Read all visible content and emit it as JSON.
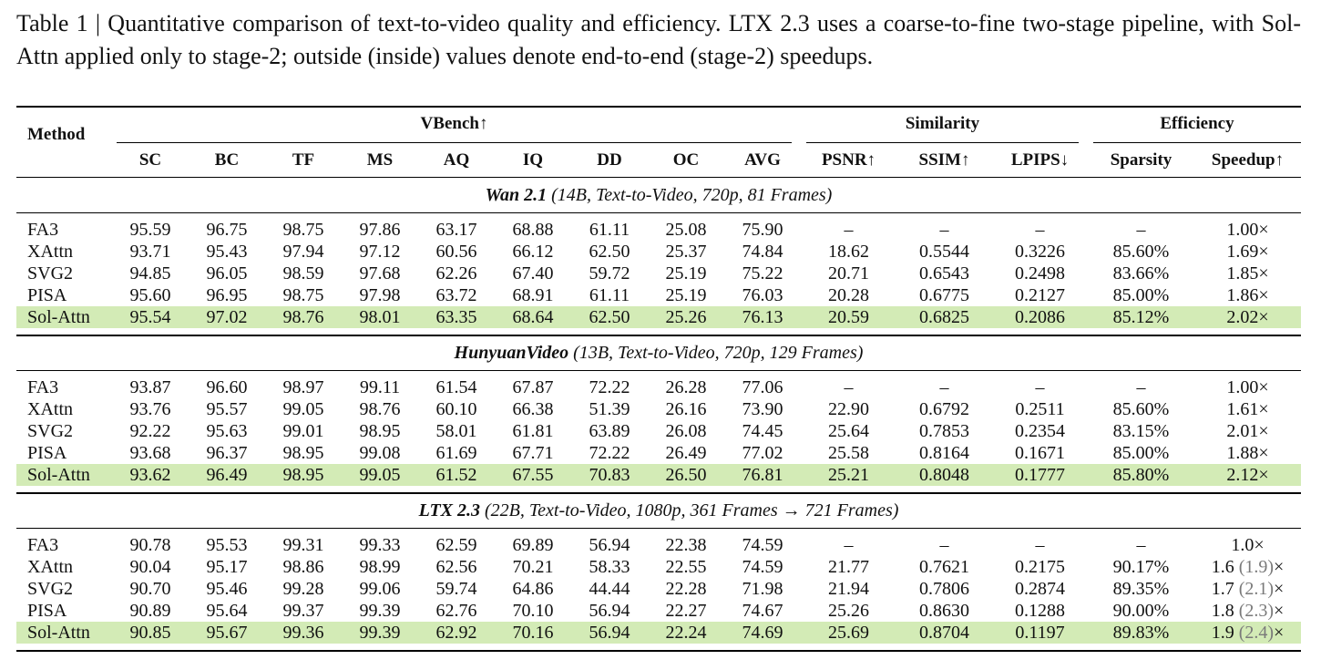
{
  "caption": "Table 1 | Quantitative comparison of text-to-video quality and efficiency. LTX 2.3 uses a coarse-to-fine two-stage pipeline, with Sol-Attn applied only to stage-2; outside (inside) values denote end-to-end (stage-2) speedups.",
  "table": {
    "header": {
      "method": "Method",
      "groups": [
        "VBench↑",
        "Similarity",
        "Efficiency"
      ],
      "columns": [
        "SC",
        "BC",
        "TF",
        "MS",
        "AQ",
        "IQ",
        "DD",
        "OC",
        "AVG",
        "PSNR↑",
        "SSIM↑",
        "LPIPS↓",
        "Sparsity",
        "Speedup↑"
      ]
    },
    "sections": [
      {
        "model": "Wan 2.1",
        "details": "(14B, Text-to-Video, 720p, 81 Frames)",
        "rows": [
          [
            "FA3",
            "95.59",
            "96.75",
            "98.75",
            "97.86",
            "63.17",
            "68.88",
            "61.11",
            "25.08",
            "75.90",
            "–",
            "–",
            "–",
            "–",
            "1.00×"
          ],
          [
            "XAttn",
            "93.71",
            "95.43",
            "97.94",
            "97.12",
            "60.56",
            "66.12",
            "62.50",
            "25.37",
            "74.84",
            "18.62",
            "0.5544",
            "0.3226",
            "85.60%",
            "1.69×"
          ],
          [
            "SVG2",
            "94.85",
            "96.05",
            "98.59",
            "97.68",
            "62.26",
            "67.40",
            "59.72",
            "25.19",
            "75.22",
            "20.71",
            "0.6543",
            "0.2498",
            "83.66%",
            "1.85×"
          ],
          [
            "PISA",
            "95.60",
            "96.95",
            "98.75",
            "97.98",
            "63.72",
            "68.91",
            "61.11",
            "25.19",
            "76.03",
            "20.28",
            "0.6775",
            "0.2127",
            "85.00%",
            "1.86×"
          ],
          [
            "Sol-Attn",
            "95.54",
            "97.02",
            "98.76",
            "98.01",
            "63.35",
            "68.64",
            "62.50",
            "25.26",
            "76.13",
            "20.59",
            "0.6825",
            "0.2086",
            "85.12%",
            "2.02×"
          ]
        ]
      },
      {
        "model": "HunyuanVideo",
        "details": "(13B, Text-to-Video, 720p, 129 Frames)",
        "rows": [
          [
            "FA3",
            "93.87",
            "96.60",
            "98.97",
            "99.11",
            "61.54",
            "67.87",
            "72.22",
            "26.28",
            "77.06",
            "–",
            "–",
            "–",
            "–",
            "1.00×"
          ],
          [
            "XAttn",
            "93.76",
            "95.57",
            "99.05",
            "98.76",
            "60.10",
            "66.38",
            "51.39",
            "26.16",
            "73.90",
            "22.90",
            "0.6792",
            "0.2511",
            "85.60%",
            "1.61×"
          ],
          [
            "SVG2",
            "92.22",
            "95.63",
            "99.01",
            "98.95",
            "58.01",
            "61.81",
            "63.89",
            "26.08",
            "74.45",
            "25.64",
            "0.7853",
            "0.2354",
            "83.15%",
            "2.01×"
          ],
          [
            "PISA",
            "93.68",
            "96.37",
            "98.95",
            "99.08",
            "61.69",
            "67.71",
            "72.22",
            "26.49",
            "77.02",
            "25.58",
            "0.8164",
            "0.1671",
            "85.00%",
            "1.88×"
          ],
          [
            "Sol-Attn",
            "93.62",
            "96.49",
            "98.95",
            "99.05",
            "61.52",
            "67.55",
            "70.83",
            "26.50",
            "76.81",
            "25.21",
            "0.8048",
            "0.1777",
            "85.80%",
            "2.12×"
          ]
        ]
      },
      {
        "model": "LTX 2.3",
        "details": "(22B, Text-to-Video, 1080p, 361 Frames → 721 Frames)",
        "rows": [
          [
            "FA3",
            "90.78",
            "95.53",
            "99.31",
            "99.33",
            "62.59",
            "69.89",
            "56.94",
            "22.38",
            "74.59",
            "–",
            "–",
            "–",
            "–",
            "1.0×"
          ],
          [
            "XAttn",
            "90.04",
            "95.17",
            "98.86",
            "98.99",
            "62.56",
            "70.21",
            "58.33",
            "22.55",
            "74.59",
            "21.77",
            "0.7621",
            "0.2175",
            "90.17%",
            {
              "outside": "1.6",
              "inside": "(1.9)",
              "unit": "×"
            }
          ],
          [
            "SVG2",
            "90.70",
            "95.46",
            "99.28",
            "99.06",
            "59.74",
            "64.86",
            "44.44",
            "22.28",
            "71.98",
            "21.94",
            "0.7806",
            "0.2874",
            "89.35%",
            {
              "outside": "1.7",
              "inside": "(2.1)",
              "unit": "×"
            }
          ],
          [
            "PISA",
            "90.89",
            "95.64",
            "99.37",
            "99.39",
            "62.76",
            "70.10",
            "56.94",
            "22.27",
            "74.67",
            "25.26",
            "0.8630",
            "0.1288",
            "90.00%",
            {
              "outside": "1.8",
              "inside": "(2.3)",
              "unit": "×"
            }
          ],
          [
            "Sol-Attn",
            "90.85",
            "95.67",
            "99.36",
            "99.39",
            "62.92",
            "70.16",
            "56.94",
            "22.24",
            "74.69",
            "25.69",
            "0.8704",
            "0.1197",
            "89.83%",
            {
              "outside": "1.9",
              "inside": "(2.4)",
              "unit": "×"
            }
          ]
        ]
      }
    ]
  }
}
